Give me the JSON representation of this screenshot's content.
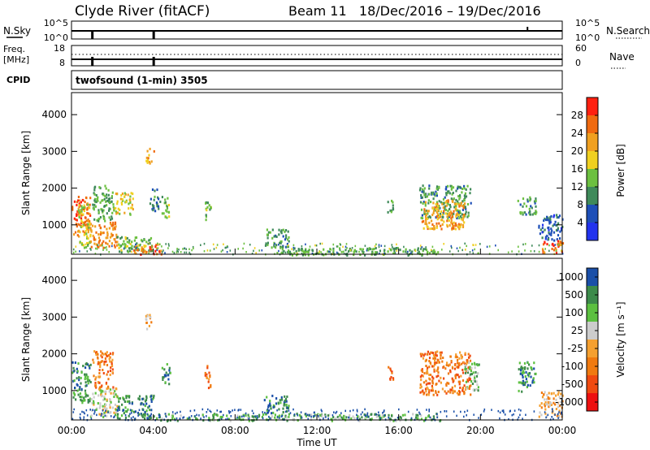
{
  "header": {
    "station": "Clyde River (fitACF)",
    "beam_info": "Beam 11   18/Dec/2016 – 19/Dec/2016"
  },
  "nsky_panel": {
    "left_label": "N.Sky",
    "left_ticks": [
      "10^5",
      "10^0"
    ],
    "right_label": "N.Search",
    "right_ticks": [
      "10^5",
      "10^0"
    ]
  },
  "freq_panel": {
    "left_label_1": "Freq.",
    "left_label_2": "[MHz]",
    "left_ticks": [
      "18",
      "8"
    ],
    "right_label": "Nave",
    "right_ticks": [
      "60",
      "0"
    ]
  },
  "cpid": {
    "label": "CPID",
    "mode_text": "twofsound (1-min) 3505"
  },
  "x_axis": {
    "ticks": [
      "00:00",
      "04:00",
      "08:00",
      "12:00",
      "16:00",
      "20:00",
      "00:00"
    ],
    "label": "Time UT"
  },
  "colors": {
    "power": [
      "#2233ee",
      "#1e4fb8",
      "#3f8a5a",
      "#6cc040",
      "#f0d020",
      "#f0a020",
      "#f06a10",
      "#ff2010"
    ],
    "velocity": [
      "#ee1010",
      "#f04a10",
      "#f07a10",
      "#f5a030",
      "#cccccc",
      "#5cc040",
      "#3c8a4a",
      "#1a4fa8"
    ]
  },
  "chart_data": [
    {
      "type": "heatmap",
      "name": "power",
      "ylabel": "Slant Range [km]",
      "yticks": [
        "4000",
        "3000",
        "2000",
        "1000"
      ],
      "ylim": [
        200,
        4600
      ],
      "colorbar_label": "Power [dB]",
      "colorbar_ticks": [
        "28",
        "24",
        "20",
        "16",
        "12",
        "8",
        "4"
      ],
      "colorbar_range": [
        0,
        32
      ],
      "blobs": [
        {
          "t": [
            0.0,
            0.9
          ],
          "r": [
            700,
            1800
          ],
          "v": 26
        },
        {
          "t": [
            0.3,
            0.9
          ],
          "r": [
            300,
            1600
          ],
          "v": 17
        },
        {
          "t": [
            0.9,
            2.2
          ],
          "r": [
            400,
            1100
          ],
          "v": 24
        },
        {
          "t": [
            2.2,
            4.0
          ],
          "r": [
            250,
            700
          ],
          "v": 14
        },
        {
          "t": [
            3.0,
            4.4
          ],
          "r": [
            220,
            500
          ],
          "v": 26
        },
        {
          "t": [
            1.0,
            2.0
          ],
          "r": [
            1100,
            2100
          ],
          "v": 12
        },
        {
          "t": [
            2.0,
            3.0
          ],
          "r": [
            1300,
            1900
          ],
          "v": 18
        },
        {
          "t": [
            3.6,
            4.0
          ],
          "r": [
            2700,
            3100
          ],
          "v": 22
        },
        {
          "t": [
            3.8,
            4.3
          ],
          "r": [
            1400,
            2000
          ],
          "v": 9
        },
        {
          "t": [
            4.4,
            4.8
          ],
          "r": [
            1200,
            1800
          ],
          "v": 14
        },
        {
          "t": [
            6.5,
            6.8
          ],
          "r": [
            1100,
            1700
          ],
          "v": 13
        },
        {
          "t": [
            9.4,
            10.6
          ],
          "r": [
            400,
            900
          ],
          "v": 11
        },
        {
          "t": [
            15.4,
            15.7
          ],
          "r": [
            1300,
            1700
          ],
          "v": 13
        },
        {
          "t": [
            17.0,
            19.5
          ],
          "r": [
            1200,
            2100
          ],
          "v": 11
        },
        {
          "t": [
            17.1,
            19.2
          ],
          "r": [
            900,
            1700
          ],
          "v": 22
        },
        {
          "t": [
            21.8,
            22.7
          ],
          "r": [
            1300,
            1800
          ],
          "v": 11
        },
        {
          "t": [
            22.8,
            24.0
          ],
          "r": [
            600,
            1300
          ],
          "v": 7
        },
        {
          "t": [
            23.0,
            24.0
          ],
          "r": [
            250,
            600
          ],
          "v": 27
        },
        {
          "t": [
            10.0,
            18.0
          ],
          "r": [
            200,
            400
          ],
          "v": 12
        }
      ]
    },
    {
      "type": "heatmap",
      "name": "velocity",
      "ylabel": "Slant Range [km]",
      "yticks": [
        "4000",
        "3000",
        "2000",
        "1000"
      ],
      "ylim": [
        200,
        4600
      ],
      "colorbar_label": "Velocity [m s⁻¹]",
      "colorbar_ticks": [
        "1000",
        "500",
        "100",
        "25",
        "-25",
        "-100",
        "-500",
        "-1000"
      ],
      "blobs": [
        {
          "t": [
            0.0,
            0.9
          ],
          "r": [
            700,
            1800
          ],
          "v": 6
        },
        {
          "t": [
            0.9,
            2.2
          ],
          "r": [
            300,
            1100
          ],
          "v": 4
        },
        {
          "t": [
            2.2,
            4.0
          ],
          "r": [
            250,
            900
          ],
          "v": 6
        },
        {
          "t": [
            1.0,
            2.0
          ],
          "r": [
            1100,
            2100
          ],
          "v": 2
        },
        {
          "t": [
            3.6,
            4.0
          ],
          "r": [
            2700,
            3100
          ],
          "v": 3
        },
        {
          "t": [
            4.4,
            4.8
          ],
          "r": [
            1200,
            1800
          ],
          "v": 6
        },
        {
          "t": [
            6.5,
            6.8
          ],
          "r": [
            1100,
            1700
          ],
          "v": 2
        },
        {
          "t": [
            9.4,
            10.6
          ],
          "r": [
            400,
            900
          ],
          "v": 6
        },
        {
          "t": [
            15.4,
            15.7
          ],
          "r": [
            1300,
            1700
          ],
          "v": 1
        },
        {
          "t": [
            17.0,
            19.5
          ],
          "r": [
            900,
            2100
          ],
          "v": 2
        },
        {
          "t": [
            19.2,
            19.9
          ],
          "r": [
            1000,
            1800
          ],
          "v": 5
        },
        {
          "t": [
            21.8,
            22.7
          ],
          "r": [
            1000,
            1800
          ],
          "v": 6
        },
        {
          "t": [
            22.8,
            24.0
          ],
          "r": [
            300,
            1000
          ],
          "v": 3
        },
        {
          "t": [
            4.0,
            18.0
          ],
          "r": [
            200,
            400
          ],
          "v": 5
        }
      ]
    }
  ]
}
